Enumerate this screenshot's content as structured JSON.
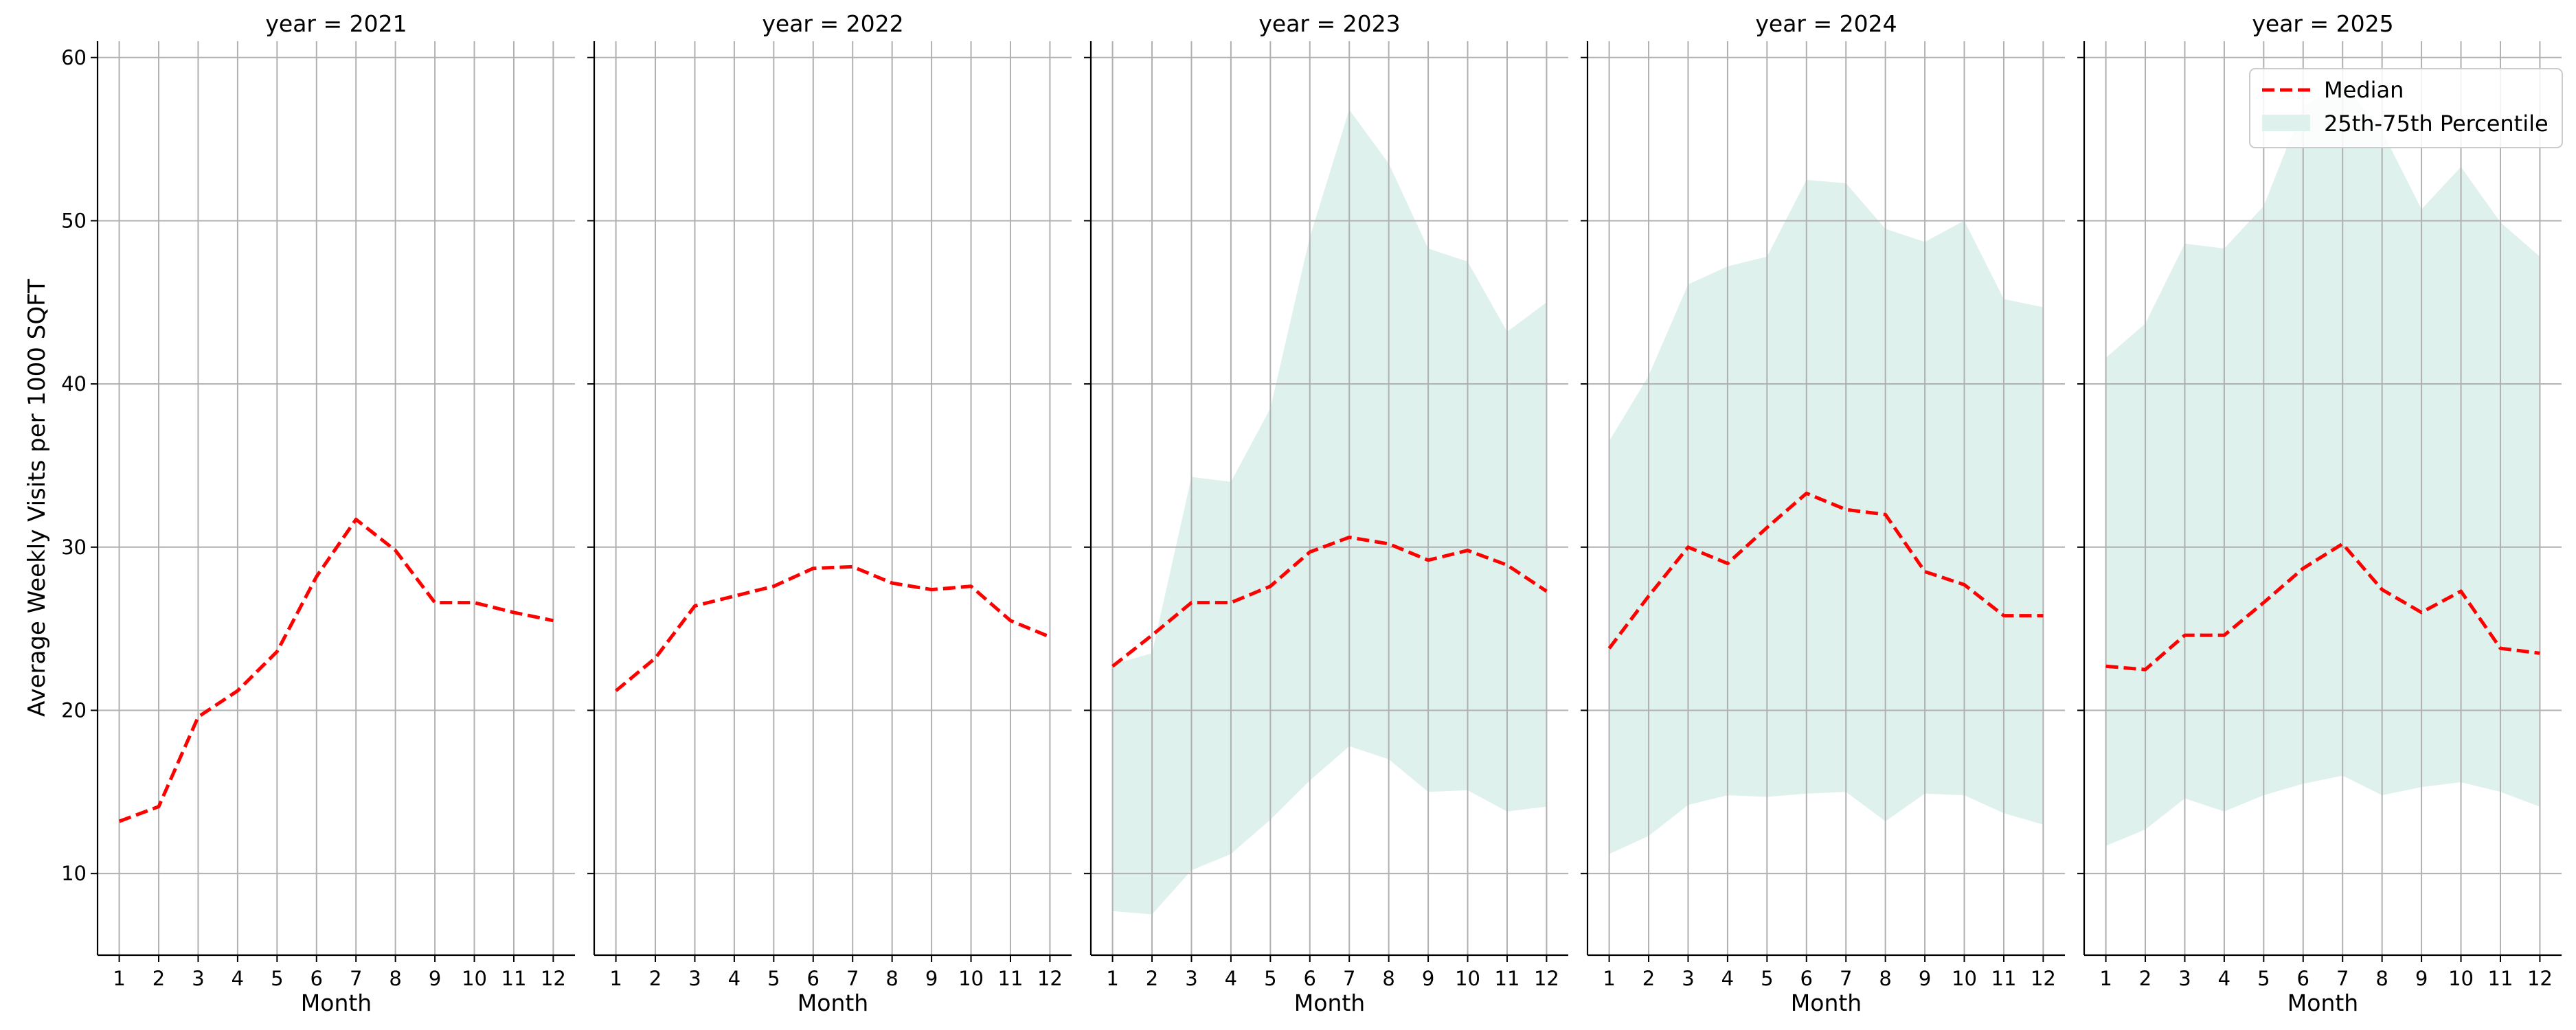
{
  "chart_data": {
    "type": "line",
    "ylabel": "Average Weekly Visits per 1000 SQFT",
    "xlabel": "Month",
    "ylim": [
      5,
      61
    ],
    "yticks": [
      10,
      20,
      30,
      40,
      50,
      60
    ],
    "xticks": [
      1,
      2,
      3,
      4,
      5,
      6,
      7,
      8,
      9,
      10,
      11,
      12
    ],
    "grid": true,
    "legend": {
      "placement": "top-right",
      "panel": 4,
      "entries": [
        "Median",
        "25th-75th Percentile"
      ]
    },
    "colors": {
      "median": "#ff0000",
      "band": "#dff1ec"
    },
    "panels": [
      {
        "title": "year = 2021",
        "x": [
          1,
          2,
          3,
          4,
          5,
          6,
          7,
          8,
          9,
          10,
          11,
          12
        ],
        "median": [
          13.2,
          14.1,
          19.6,
          21.2,
          23.6,
          28.2,
          31.7,
          29.8,
          26.6,
          26.6,
          26.0,
          25.5
        ],
        "p25": null,
        "p75": null
      },
      {
        "title": "year = 2022",
        "x": [
          1,
          2,
          3,
          4,
          5,
          6,
          7,
          8,
          9,
          10,
          11,
          12
        ],
        "median": [
          21.2,
          23.2,
          26.4,
          27.0,
          27.6,
          28.7,
          28.8,
          27.8,
          27.4,
          27.6,
          25.5,
          24.5
        ],
        "p25": null,
        "p75": null
      },
      {
        "title": "year = 2023",
        "x": [
          1,
          2,
          3,
          4,
          5,
          6,
          7,
          8,
          9,
          10,
          11,
          12
        ],
        "median": [
          22.7,
          24.6,
          26.6,
          26.6,
          27.6,
          29.7,
          30.6,
          30.2,
          29.2,
          29.8,
          28.9,
          27.3
        ],
        "p25": [
          7.7,
          7.5,
          10.2,
          11.2,
          13.3,
          15.7,
          17.8,
          17.0,
          15.0,
          15.1,
          13.8,
          14.1
        ],
        "p75": [
          22.8,
          23.5,
          34.3,
          34.0,
          38.5,
          49.0,
          56.8,
          53.5,
          48.3,
          47.5,
          43.2,
          45.0
        ]
      },
      {
        "title": "year = 2024",
        "x": [
          1,
          2,
          3,
          4,
          5,
          6,
          7,
          8,
          9,
          10,
          11,
          12
        ],
        "median": [
          23.8,
          27.0,
          30.0,
          29.0,
          31.2,
          33.3,
          32.3,
          32.0,
          28.5,
          27.7,
          25.8,
          25.8
        ],
        "p25": [
          11.2,
          12.3,
          14.2,
          14.8,
          14.7,
          14.9,
          15.0,
          13.2,
          14.9,
          14.8,
          13.7,
          13.0
        ],
        "p75": [
          36.5,
          40.5,
          46.1,
          47.2,
          47.8,
          52.5,
          52.3,
          49.5,
          48.7,
          50.0,
          45.2,
          44.7
        ]
      },
      {
        "title": "year = 2025",
        "x": [
          1,
          2,
          3,
          4,
          5,
          6,
          7,
          8,
          9,
          10,
          11,
          12
        ],
        "median": [
          22.7,
          22.5,
          24.6,
          24.6,
          26.6,
          28.7,
          30.2,
          27.4,
          26.0,
          27.3,
          23.8,
          23.5
        ],
        "p25": [
          11.7,
          12.7,
          14.6,
          13.8,
          14.8,
          15.5,
          16.0,
          14.8,
          15.3,
          15.6,
          15.0,
          14.1
        ],
        "p75": [
          41.6,
          43.7,
          48.6,
          48.3,
          50.9,
          57.0,
          58.5,
          55.5,
          50.7,
          53.3,
          49.9,
          47.8
        ]
      }
    ]
  }
}
